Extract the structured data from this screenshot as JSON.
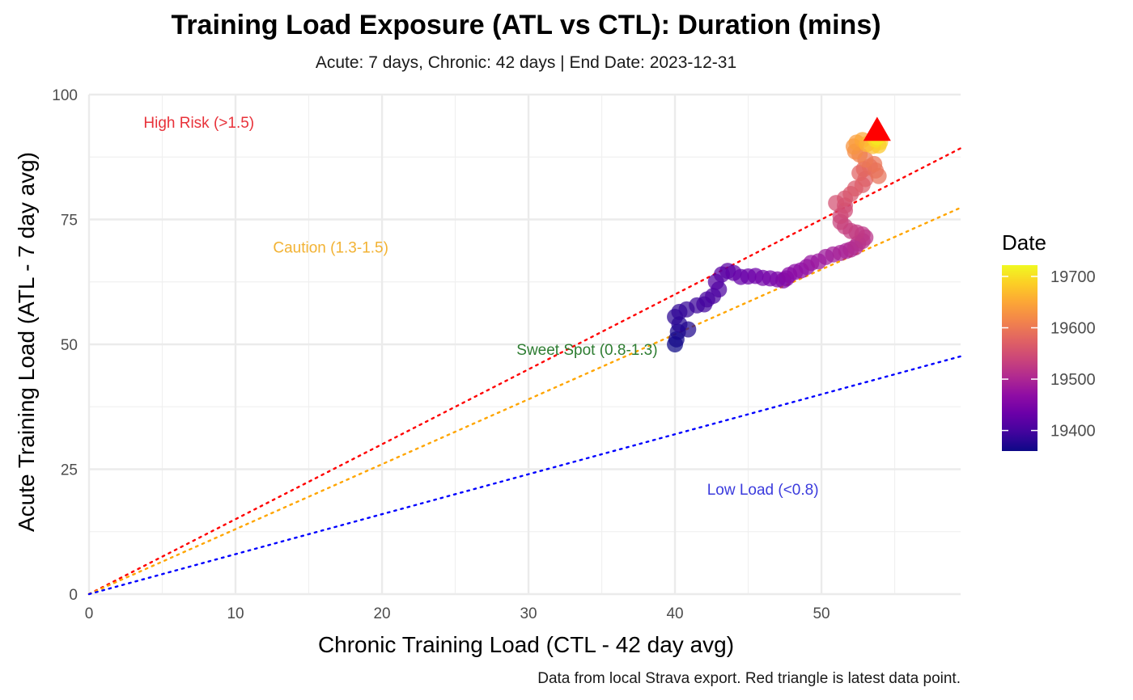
{
  "chart_data": {
    "type": "scatter",
    "title": "Training Load Exposure (ATL vs CTL): Duration (mins)",
    "subtitle": "Acute: 7 days, Chronic: 42 days | End Date: 2023-12-31",
    "caption": "Data from local Strava export. Red triangle is latest data point.",
    "xlabel": "Chronic Training Load (CTL - 42 day avg)",
    "ylabel": "Acute Training Load (ATL - 7 day avg)",
    "xlim": [
      0,
      59.5
    ],
    "ylim": [
      0,
      100
    ],
    "x_ticks": [
      0,
      10,
      20,
      30,
      40,
      50
    ],
    "y_ticks": [
      0,
      25,
      50,
      75,
      100
    ],
    "grid": true,
    "reference_lines": [
      {
        "ratio": 1.5,
        "color": "#ff0000",
        "style": "dotted"
      },
      {
        "ratio": 1.3,
        "color": "#ffa500",
        "style": "dotted"
      },
      {
        "ratio": 0.8,
        "color": "#0000ff",
        "style": "dotted"
      }
    ],
    "zone_labels": [
      {
        "text": "High Risk (>1.5)",
        "x": 7.5,
        "y": 94.5,
        "color": "#e8323a"
      },
      {
        "text": "Caution (1.3-1.5)",
        "x": 16.5,
        "y": 69.5,
        "color": "#f2b233"
      },
      {
        "text": "Sweet Spot (0.8-1.3)",
        "x": 34,
        "y": 49,
        "color": "#2e7d32"
      },
      {
        "text": "Low Load (<0.8)",
        "x": 46,
        "y": 21,
        "color": "#3b3bdd"
      }
    ],
    "color_scale": {
      "name": "Date",
      "min": 19360,
      "max": 19722,
      "palette": "plasma",
      "ticks": [
        19400,
        19500,
        19600,
        19700
      ]
    },
    "series": [
      {
        "points": [
          [
            40.0,
            50.0,
            19360
          ],
          [
            40.1,
            51.0,
            19364
          ],
          [
            40.2,
            52.5,
            19368
          ],
          [
            40.9,
            53.0,
            19372
          ],
          [
            40.3,
            54.0,
            19376
          ],
          [
            40.0,
            55.5,
            19380
          ],
          [
            40.3,
            56.5,
            19384
          ],
          [
            40.8,
            57.0,
            19388
          ],
          [
            41.5,
            57.8,
            19392
          ],
          [
            42.0,
            58.0,
            19396
          ],
          [
            42.2,
            59.0,
            19400
          ],
          [
            42.6,
            59.7,
            19404
          ],
          [
            43.0,
            61.0,
            19408
          ],
          [
            42.8,
            62.5,
            19412
          ],
          [
            43.2,
            64.0,
            19416
          ],
          [
            43.6,
            64.7,
            19420
          ],
          [
            44.0,
            64.3,
            19424
          ],
          [
            44.5,
            63.5,
            19428
          ],
          [
            45.0,
            63.6,
            19432
          ],
          [
            45.5,
            63.7,
            19436
          ],
          [
            46.0,
            63.3,
            19440
          ],
          [
            46.5,
            63.2,
            19444
          ],
          [
            47.0,
            63.0,
            19448
          ],
          [
            47.4,
            62.8,
            19452
          ],
          [
            47.6,
            63.2,
            19456
          ],
          [
            47.8,
            63.9,
            19460
          ],
          [
            48.2,
            64.5,
            19464
          ],
          [
            48.6,
            64.8,
            19468
          ],
          [
            49.0,
            65.5,
            19472
          ],
          [
            49.3,
            66.3,
            19476
          ],
          [
            49.8,
            66.6,
            19480
          ],
          [
            50.3,
            67.5,
            19484
          ],
          [
            50.8,
            68.0,
            19488
          ],
          [
            51.3,
            68.3,
            19492
          ],
          [
            51.7,
            68.7,
            19496
          ],
          [
            52.0,
            69.0,
            19500
          ],
          [
            52.3,
            69.4,
            19504
          ],
          [
            52.5,
            70.2,
            19508
          ],
          [
            52.8,
            70.7,
            19512
          ],
          [
            53.0,
            71.4,
            19516
          ],
          [
            52.8,
            72.0,
            19520
          ],
          [
            52.4,
            72.4,
            19524
          ],
          [
            52.0,
            72.7,
            19528
          ],
          [
            51.6,
            73.6,
            19532
          ],
          [
            51.3,
            74.5,
            19536
          ],
          [
            51.3,
            75.7,
            19540
          ],
          [
            51.6,
            76.8,
            19544
          ],
          [
            51.6,
            77.8,
            19548
          ],
          [
            51.0,
            78.3,
            19552
          ],
          [
            51.6,
            79.2,
            19556
          ],
          [
            52.0,
            80.1,
            19560
          ],
          [
            52.3,
            81.2,
            19564
          ],
          [
            52.8,
            81.9,
            19568
          ],
          [
            53.0,
            83.1,
            19572
          ],
          [
            52.6,
            84.3,
            19576
          ],
          [
            52.9,
            85.1,
            19580
          ],
          [
            53.3,
            85.6,
            19584
          ],
          [
            53.7,
            84.8,
            19588
          ],
          [
            53.9,
            83.7,
            19592
          ],
          [
            53.6,
            86.1,
            19596
          ],
          [
            53.0,
            87.0,
            19600
          ],
          [
            52.6,
            88.0,
            19610
          ],
          [
            52.3,
            88.6,
            19620
          ],
          [
            52.2,
            89.6,
            19630
          ],
          [
            52.4,
            90.4,
            19640
          ],
          [
            52.8,
            90.9,
            19650
          ],
          [
            53.1,
            90.1,
            19660
          ],
          [
            53.5,
            89.7,
            19670
          ],
          [
            53.9,
            89.8,
            19680
          ],
          [
            54.0,
            90.5,
            19690
          ],
          [
            53.7,
            91.0,
            19700
          ],
          [
            53.8,
            91.5,
            19710
          ]
        ]
      }
    ],
    "latest_point": {
      "x": 53.8,
      "y": 92.8,
      "marker": "triangle",
      "color": "#ff0000"
    }
  }
}
